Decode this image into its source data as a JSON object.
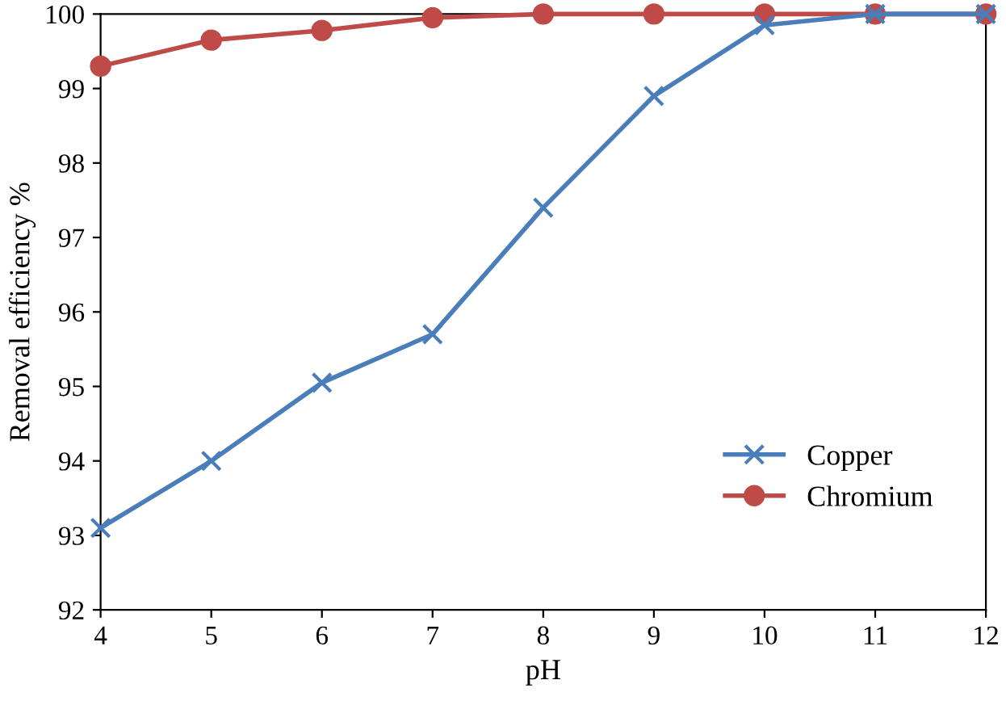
{
  "chart_data": {
    "type": "line",
    "xlabel": "pH",
    "ylabel": "Removal efficiency %",
    "x": [
      4,
      5,
      6,
      7,
      8,
      9,
      10,
      11,
      12
    ],
    "series": [
      {
        "name": "Copper",
        "color": "#4a7ebb",
        "marker": "cross",
        "values": [
          93.1,
          94.0,
          95.05,
          95.7,
          97.4,
          98.9,
          99.85,
          100,
          100
        ]
      },
      {
        "name": "Chromium",
        "color": "#be4b48",
        "marker": "circle",
        "values": [
          99.3,
          99.65,
          99.78,
          99.95,
          100,
          100,
          100,
          100,
          100
        ]
      }
    ],
    "xlim": [
      4,
      12
    ],
    "xticks": [
      4,
      5,
      6,
      7,
      8,
      9,
      10,
      11,
      12
    ],
    "ylim": [
      92,
      100
    ],
    "yticks": [
      92,
      93,
      94,
      95,
      96,
      97,
      98,
      99,
      100
    ],
    "grid": false,
    "legend": "bottom right",
    "line_style": "solid"
  }
}
